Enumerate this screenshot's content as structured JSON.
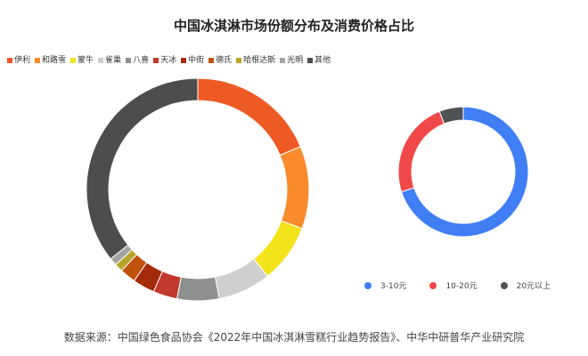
{
  "title": "中国冰淇淋市场份额分布及消费价格占比",
  "source": "数据来源：中国绿色食品协会《2022年中国冰淇淋雪糕行业趋势报告》、中华中研普华产业研究院",
  "chart_data": [
    {
      "type": "pie",
      "donut": true,
      "legend_position": "top",
      "categories": [
        "伊利",
        "和路雪",
        "蒙牛",
        "雀巢",
        "八喜",
        "天冰",
        "中街",
        "德氏",
        "哈根达斯",
        "光明",
        "其他"
      ],
      "values": [
        18.7,
        12.0,
        8.5,
        7.7,
        6.1,
        3.5,
        3.2,
        2.3,
        1.2,
        1.1,
        35.7
      ],
      "colors": [
        "#EE5A24",
        "#F98B2D",
        "#F2E31B",
        "#CFCFCF",
        "#8E9090",
        "#C0392B",
        "#A52A0A",
        "#C0520E",
        "#B8A42A",
        "#A3A3A3",
        "#4D4D4D"
      ]
    },
    {
      "type": "pie",
      "donut": true,
      "legend_position": "bottom",
      "categories": [
        "3-10元",
        "10-20元",
        "20元以上"
      ],
      "values": [
        70,
        24,
        6
      ],
      "colors": [
        "#3F7EF5",
        "#F04848",
        "#4F5356"
      ]
    }
  ]
}
